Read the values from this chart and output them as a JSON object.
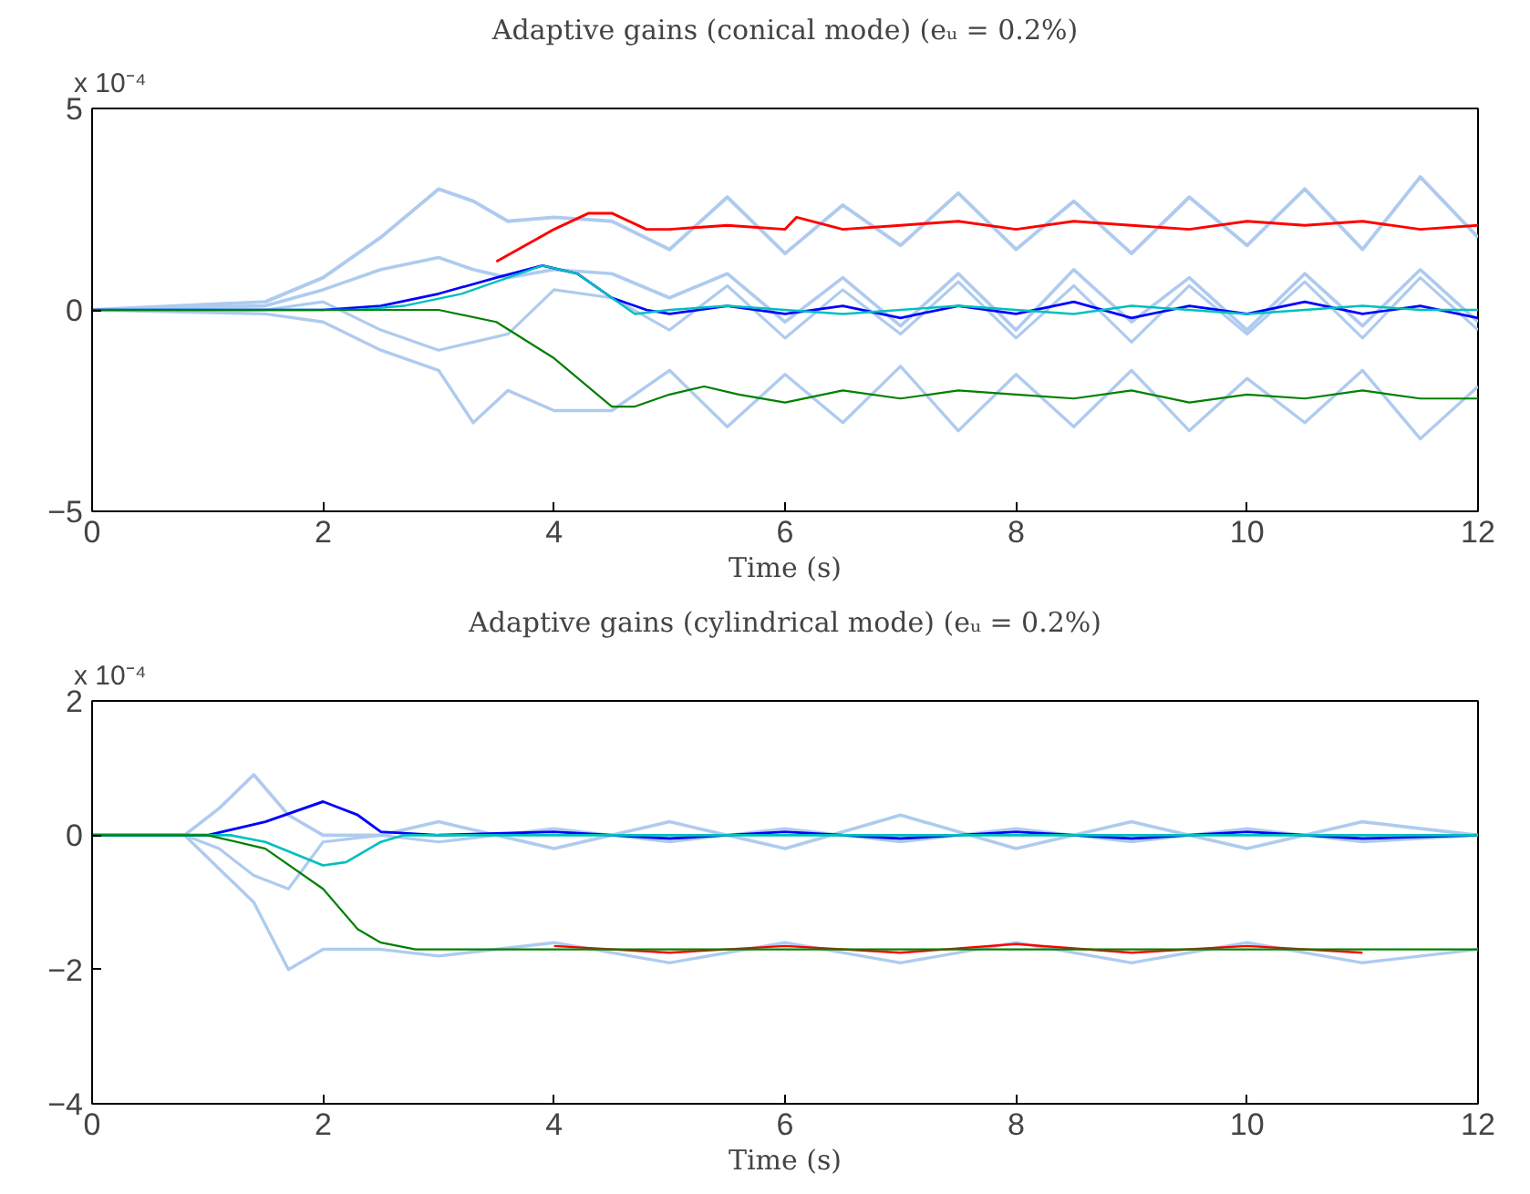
{
  "chart_data": [
    {
      "type": "line",
      "title": "Adaptive gains (conical mode) (eᵤ = 0.2%)",
      "xlabel": "Time (s)",
      "xlim": [
        0,
        12
      ],
      "xticks": [
        0,
        2,
        4,
        6,
        8,
        10,
        12
      ],
      "ylim": [
        -5,
        5
      ],
      "yticks": [
        -5,
        0,
        5
      ],
      "grid": false,
      "annotations": [
        "x 10⁻⁴"
      ],
      "series": [
        {
          "color": "#aecbef",
          "x": [
            0,
            1.5,
            2,
            2.5,
            3,
            3.3,
            3.6,
            4,
            4.5,
            5,
            5.5,
            6,
            6.5,
            7,
            7.5,
            8,
            8.5,
            9,
            9.5,
            10,
            10.5,
            11,
            11.5,
            12
          ],
          "values": [
            0,
            0.2,
            0.8,
            1.8,
            3.0,
            2.7,
            2.2,
            2.3,
            2.2,
            1.5,
            2.8,
            1.4,
            2.6,
            1.6,
            2.9,
            1.5,
            2.7,
            1.4,
            2.8,
            1.6,
            3.0,
            1.5,
            3.3,
            1.8
          ]
        },
        {
          "color": "#aecbef",
          "x": [
            0,
            1.5,
            2,
            2.5,
            3,
            3.3,
            3.6,
            4,
            4.5,
            5,
            5.5,
            6,
            6.5,
            7,
            7.5,
            8,
            8.5,
            9,
            9.5,
            10,
            10.5,
            11,
            11.5,
            12
          ],
          "values": [
            0,
            0.1,
            0.5,
            1.0,
            1.3,
            1.0,
            0.8,
            1.0,
            0.9,
            0.3,
            0.9,
            -0.3,
            0.8,
            -0.4,
            0.9,
            -0.5,
            1.0,
            -0.3,
            0.8,
            -0.5,
            0.9,
            -0.4,
            1.0,
            -0.3
          ]
        },
        {
          "color": "#aecbef",
          "x": [
            0,
            1.5,
            2,
            2.5,
            3,
            3.3,
            3.6,
            4,
            4.5,
            5,
            5.5,
            6,
            6.5,
            7,
            7.5,
            8,
            8.5,
            9,
            9.5,
            10,
            10.5,
            11,
            11.5,
            12
          ],
          "values": [
            0,
            -0.1,
            -0.3,
            -1.0,
            -1.5,
            -2.8,
            -2.0,
            -2.5,
            -2.5,
            -1.5,
            -2.9,
            -1.6,
            -2.8,
            -1.4,
            -3.0,
            -1.6,
            -2.9,
            -1.5,
            -3.0,
            -1.7,
            -2.8,
            -1.5,
            -3.2,
            -1.9
          ]
        },
        {
          "color": "#aecbef",
          "x": [
            0,
            1.5,
            2,
            2.5,
            3,
            3.3,
            3.6,
            4,
            4.5,
            5,
            5.5,
            6,
            6.5,
            7,
            7.5,
            8,
            8.5,
            9,
            9.5,
            10,
            10.5,
            11,
            11.5,
            12
          ],
          "values": [
            0,
            0,
            0.2,
            -0.5,
            -1.0,
            -0.8,
            -0.6,
            0.5,
            0.3,
            -0.5,
            0.6,
            -0.7,
            0.5,
            -0.6,
            0.7,
            -0.7,
            0.6,
            -0.8,
            0.6,
            -0.6,
            0.7,
            -0.7,
            0.8,
            -0.5
          ]
        },
        {
          "color": "#ff0000",
          "x": [
            3.5,
            4,
            4.3,
            4.5,
            4.8,
            5,
            5.5,
            6,
            6.1,
            6.5,
            7,
            7.5,
            8,
            8.5,
            9,
            9.5,
            10,
            10.5,
            11,
            11.5,
            12
          ],
          "values": [
            1.2,
            2.0,
            2.4,
            2.4,
            2.0,
            2.0,
            2.1,
            2.0,
            2.3,
            2.0,
            2.1,
            2.2,
            2.0,
            2.2,
            2.1,
            2.0,
            2.2,
            2.1,
            2.2,
            2.0,
            2.1
          ]
        },
        {
          "color": "#0000ff",
          "x": [
            0,
            2,
            2.5,
            3,
            3.5,
            3.9,
            4.2,
            4.5,
            4.8,
            5,
            5.5,
            6,
            6.5,
            7,
            7.5,
            8,
            8.5,
            9,
            9.5,
            10,
            10.5,
            11,
            11.5,
            12
          ],
          "values": [
            0,
            0,
            0.1,
            0.4,
            0.8,
            1.1,
            0.9,
            0.3,
            0,
            -0.1,
            0.1,
            -0.1,
            0.1,
            -0.2,
            0.1,
            -0.1,
            0.2,
            -0.2,
            0.1,
            -0.1,
            0.2,
            -0.1,
            0.1,
            -0.2
          ]
        },
        {
          "color": "#00bfbf",
          "x": [
            0,
            2.3,
            2.7,
            3.2,
            3.6,
            3.9,
            4.2,
            4.5,
            4.7,
            5,
            5.5,
            6,
            6.5,
            7,
            7.5,
            8,
            8.5,
            9,
            9.5,
            10,
            10.5,
            11,
            11.5,
            12
          ],
          "values": [
            0,
            0,
            0.1,
            0.4,
            0.8,
            1.1,
            0.9,
            0.3,
            -0.1,
            0,
            0.1,
            0,
            -0.1,
            0,
            0.1,
            0,
            -0.1,
            0.1,
            0,
            -0.1,
            0,
            0.1,
            0,
            0
          ]
        },
        {
          "color": "#008000",
          "x": [
            0,
            3,
            3.5,
            4,
            4.5,
            4.7,
            5,
            5.3,
            5.6,
            6,
            6.5,
            7,
            7.5,
            8,
            8.5,
            9,
            9.5,
            10,
            10.5,
            11,
            11.5,
            12
          ],
          "values": [
            0,
            0,
            -0.3,
            -1.2,
            -2.4,
            -2.4,
            -2.1,
            -1.9,
            -2.1,
            -2.3,
            -2.0,
            -2.2,
            -2.0,
            -2.1,
            -2.2,
            -2.0,
            -2.3,
            -2.1,
            -2.2,
            -2.0,
            -2.2,
            -2.2
          ]
        }
      ]
    },
    {
      "type": "line",
      "title": "Adaptive gains (cylindrical mode) (eᵤ = 0.2%)",
      "xlabel": "Time (s)",
      "xlim": [
        0,
        12
      ],
      "xticks": [
        0,
        2,
        4,
        6,
        8,
        10,
        12
      ],
      "ylim": [
        -4,
        2
      ],
      "yticks": [
        -4,
        -2,
        0,
        2
      ],
      "grid": false,
      "annotations": [
        "x 10⁻⁴"
      ],
      "series": [
        {
          "color": "#aecbef",
          "x": [
            0,
            0.8,
            1.1,
            1.4,
            1.7,
            2,
            2.5,
            3,
            4,
            5,
            6,
            7,
            8,
            9,
            10,
            11,
            12
          ],
          "values": [
            0,
            0,
            0.4,
            0.9,
            0.3,
            0,
            0,
            0.2,
            -0.2,
            0.2,
            -0.2,
            0.3,
            -0.2,
            0.2,
            -0.2,
            0.2,
            0
          ]
        },
        {
          "color": "#aecbef",
          "x": [
            0,
            0.8,
            1.1,
            1.4,
            1.7,
            2,
            2.5,
            3,
            4,
            5,
            6,
            7,
            8,
            9,
            10,
            11,
            12
          ],
          "values": [
            0,
            0,
            -0.5,
            -1.0,
            -2.0,
            -1.7,
            -1.7,
            -1.8,
            -1.6,
            -1.9,
            -1.6,
            -1.9,
            -1.6,
            -1.9,
            -1.6,
            -1.9,
            -1.7
          ]
        },
        {
          "color": "#aecbef",
          "x": [
            0,
            0.8,
            1.1,
            1.4,
            1.7,
            2,
            2.5,
            3,
            4,
            5,
            6,
            7,
            8,
            9,
            10,
            11,
            12
          ],
          "values": [
            0,
            0,
            -0.2,
            -0.6,
            -0.8,
            -0.1,
            0,
            -0.1,
            0.1,
            -0.1,
            0.1,
            -0.1,
            0.1,
            -0.1,
            0.1,
            -0.1,
            0
          ]
        },
        {
          "color": "#0000ff",
          "x": [
            0,
            1,
            1.5,
            2,
            2.3,
            2.5,
            3,
            4,
            5,
            6,
            7,
            8,
            9,
            10,
            11,
            12
          ],
          "values": [
            0,
            0,
            0.2,
            0.5,
            0.3,
            0.05,
            0,
            0.05,
            -0.05,
            0.05,
            -0.05,
            0.05,
            -0.05,
            0.05,
            -0.05,
            0
          ]
        },
        {
          "color": "#00bfbf",
          "x": [
            0,
            1.2,
            1.5,
            2,
            2.2,
            2.5,
            2.7,
            4,
            6,
            8,
            10,
            12
          ],
          "values": [
            0,
            0,
            -0.1,
            -0.45,
            -0.4,
            -0.1,
            0,
            0,
            0,
            0,
            0,
            0
          ]
        },
        {
          "color": "#ff0000",
          "x": [
            4,
            5,
            6,
            7,
            8,
            9,
            10,
            11
          ],
          "values": [
            -1.65,
            -1.75,
            -1.65,
            -1.75,
            -1.62,
            -1.75,
            -1.65,
            -1.75
          ]
        },
        {
          "color": "#008000",
          "x": [
            0,
            1,
            1.5,
            2,
            2.3,
            2.5,
            2.8,
            3,
            4,
            5,
            6,
            7,
            8,
            9,
            10,
            11,
            12
          ],
          "values": [
            0,
            0,
            -0.2,
            -0.8,
            -1.4,
            -1.6,
            -1.7,
            -1.7,
            -1.7,
            -1.7,
            -1.7,
            -1.7,
            -1.7,
            -1.7,
            -1.7,
            -1.7,
            -1.7
          ]
        }
      ]
    }
  ]
}
